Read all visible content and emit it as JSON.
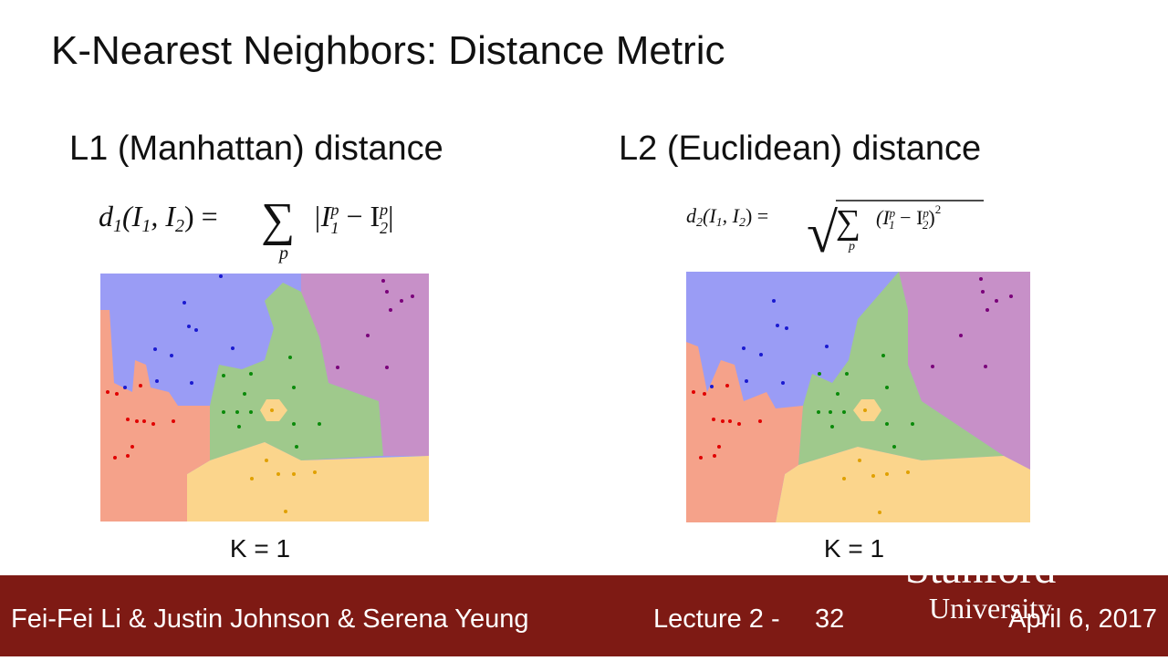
{
  "slide": {
    "title": "K-Nearest Neighbors: Distance Metric",
    "left": {
      "heading": "L1 (Manhattan) distance",
      "formula": [
        "d",
        "1",
        "(I",
        "1",
        ", I",
        "2",
        ") = ",
        "∑",
        "p",
        "|I",
        "p",
        "1",
        " − I",
        "p",
        "2",
        "|"
      ],
      "caption": "K = 1"
    },
    "right": {
      "heading": "L2 (Euclidean) distance",
      "formula": [
        "d",
        "2",
        "(I",
        "1",
        ", I",
        "2",
        ") = ",
        "√",
        "∑",
        "p",
        "(I",
        "p",
        "1",
        " − I",
        "p",
        "2",
        ")",
        "2"
      ],
      "caption": "K = 1"
    },
    "footer": {
      "authors": "Fei-Fei Li & Justin Johnson & Serena Yeung",
      "lecture": "Lecture 2 -",
      "page": "32",
      "logo": [
        "Stanford",
        "University"
      ],
      "date": "April 6, 2017"
    }
  }
}
